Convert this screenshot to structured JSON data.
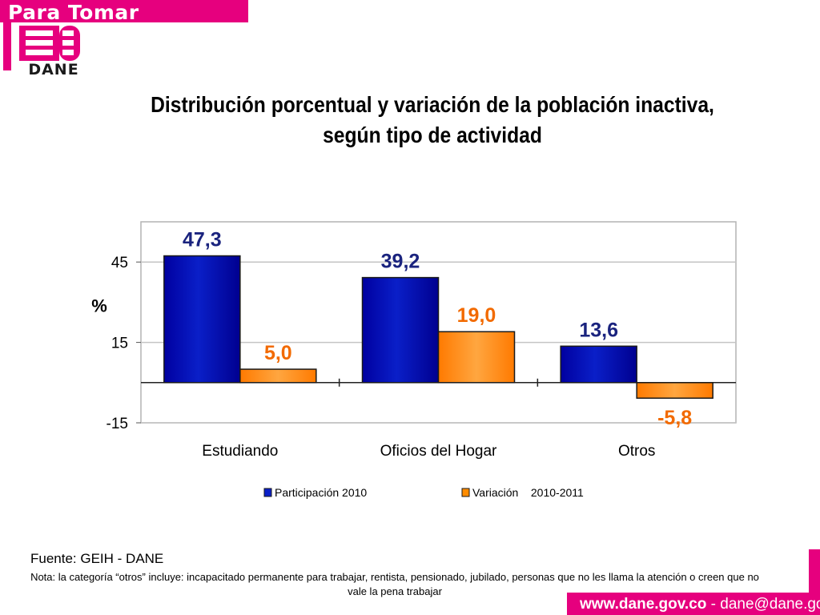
{
  "header": {
    "banner_text": "Para Tomar Decisiones",
    "logo_text": "DANE",
    "brand_color": "#e6007e"
  },
  "title": "Distribución porcentual y variación de la población inactiva, según tipo de actividad",
  "chart_data": {
    "type": "bar",
    "title": "Distribución porcentual y variación de la población inactiva, según tipo de actividad",
    "categories": [
      "Estudiando",
      "Oficios del Hogar",
      "Otros"
    ],
    "series": [
      {
        "name": "Participación 2010",
        "values": [
          47.3,
          39.2,
          13.6
        ],
        "labels": [
          "47,3",
          "39,2",
          "13,6"
        ],
        "color": "#0a1fc8",
        "label_color": "#1a237e"
      },
      {
        "name": "Variación    2010-2011",
        "values": [
          5.0,
          19.0,
          -5.8
        ],
        "labels": [
          "5,0",
          "19,0",
          "-5,8"
        ],
        "color": "#ff8c00",
        "label_color": "#f26a00"
      }
    ],
    "xlabel": "",
    "ylabel": "%",
    "ylim": [
      -15,
      60
    ],
    "yticks": [
      -15,
      15,
      45
    ],
    "ytick_labels": [
      "-15",
      "15",
      "45"
    ],
    "grid": true,
    "legend": "bottom"
  },
  "footer": {
    "source": "Fuente: GEIH - DANE",
    "note": "Nota: la categoría “otros” incluye: incapacitado permanente para trabajar, rentista, pensionado, jubilado, personas que no les llama la atención o creen que no vale la pena trabajar",
    "website": "www.dane.gov.co",
    "separator": " - ",
    "email": "dane@dane.gov.co"
  }
}
